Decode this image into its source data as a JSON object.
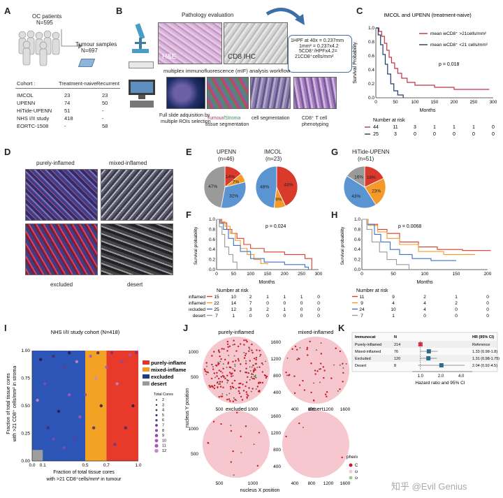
{
  "panelA": {
    "label": "A",
    "patients": "OC patients",
    "patients_n": "N=595",
    "samples": "Tumour samples",
    "samples_n": "N=697",
    "cohort_header": "Cohort :",
    "col_naive": "Treatment-naive",
    "col_recurrent": "Recurrent",
    "rows": [
      {
        "name": "IMCOL",
        "naive": "23",
        "rec": "23"
      },
      {
        "name": "UPENN",
        "naive": "74",
        "rec": "50"
      },
      {
        "name": "HiTide-UPENN",
        "naive": "51",
        "rec": "-"
      },
      {
        "name": "NHS I/II study",
        "naive": "418",
        "rec": "-"
      },
      {
        "name": "EORTC-1508",
        "naive": "-",
        "rec": "58"
      }
    ]
  },
  "panelB": {
    "label": "B",
    "title": "Pathology evaluation",
    "he": "H&E",
    "ihc": "CD8 IHC",
    "box_lines": [
      "1HPF at 40x = 0.237mm",
      "1mm² = 0.237x4.2",
      "5CD8⁺/HPFx4.2=",
      "21CD8⁺cells/mm²"
    ],
    "workflow": "multiplex immunofluorescence (mIF) analysis workflow",
    "step1": "Full slide adquisition by",
    "step1b": "multiple ROIs selection",
    "step2a": "Tumour",
    "step2slash": "/",
    "step2b": "Stroma",
    "step2c": "tissue segmentation",
    "step3": "cell segmentation",
    "step4a": "CD8⁺ T cell",
    "step4b": "phenotyping"
  },
  "panelC": {
    "label": "C",
    "title": "IMCOL and UPENN (treatment-naive)",
    "ylabel": "Survival Probability",
    "xlabel": "Months",
    "legend_high": "mean ieCD8⁺ >21cells/mm²",
    "legend_low": "mean ieCD8⁺ <21 cells/mm²",
    "p": "p = 0.018",
    "risk_title": "Number at risk",
    "xticks": [
      "0",
      "50",
      "100",
      "150",
      "200",
      "250",
      "300"
    ],
    "yticks": [
      "0.0",
      "0.2",
      "0.4",
      "0.6",
      "0.8",
      "1.0"
    ],
    "risk_high": [
      "44",
      "11",
      "3",
      "1",
      "1",
      "1",
      "0"
    ],
    "risk_low": [
      "25",
      "3",
      "0",
      "0",
      "0",
      "0",
      "0"
    ]
  },
  "panelD": {
    "label": "D",
    "t1": "purely-inflamed",
    "t2": "mixed-inflamed",
    "t3": "excluded",
    "t4": "desert"
  },
  "panelE": {
    "label": "E",
    "upenn": "UPENN",
    "upenn_n": "(n=46)",
    "imcol": "IMCOL",
    "imcol_n": "(n=23)",
    "upenn_slices": [
      "14%",
      "7%",
      "32%",
      "47%"
    ],
    "imcol_slices": [
      "43%",
      "9%",
      "48%"
    ]
  },
  "panelF": {
    "label": "F",
    "p": "p = 0.024",
    "ylabel": "Survival probability",
    "xlabel": "Months",
    "risk_title": "Number at risk",
    "xticks": [
      "0",
      "50",
      "100",
      "150",
      "200",
      "250",
      "300"
    ],
    "yticks": [
      "0.0",
      "0.2",
      "0.4",
      "0.6",
      "0.8",
      "1.0"
    ],
    "rows": [
      {
        "name": "purely-inflamed",
        "vals": [
          "15",
          "10",
          "2",
          "1",
          "1",
          "1",
          "0"
        ]
      },
      {
        "name": "mixed-inflamed",
        "vals": [
          "22",
          "14",
          "7",
          "0",
          "0",
          "0",
          "0"
        ]
      },
      {
        "name": "excluded",
        "vals": [
          "25",
          "12",
          "3",
          "2",
          "1",
          "0",
          "0"
        ]
      },
      {
        "name": "desert",
        "vals": [
          "7",
          "1",
          "0",
          "0",
          "0",
          "0",
          "0"
        ]
      }
    ]
  },
  "panelG": {
    "label": "G",
    "title": "HiTide-UPENN",
    "n": "(n=51)",
    "slices": [
      "18%",
      "23%",
      "43%",
      "16%"
    ]
  },
  "panelH": {
    "label": "H",
    "p": "p = 0.0068",
    "ylabel": "Survival probability",
    "xlabel": "Months",
    "risk_title": "Number at risk",
    "xticks": [
      "0",
      "50",
      "100",
      "150",
      "200"
    ],
    "yticks": [
      "0.0",
      "0.2",
      "0.4",
      "0.6",
      "0.8",
      "1.0"
    ],
    "rows": [
      {
        "vals": [
          "11",
          "9",
          "2",
          "1",
          "0"
        ]
      },
      {
        "vals": [
          "9",
          "4",
          "4",
          "2",
          "0"
        ]
      },
      {
        "vals": [
          "24",
          "10",
          "4",
          "0",
          "0"
        ]
      },
      {
        "vals": [
          "7",
          "1",
          "0",
          "0",
          "0"
        ]
      }
    ]
  },
  "panelI": {
    "label": "I",
    "title": "NHS I/II study cohort (N=418)",
    "ylabel1": "Fraction of total tissue cores",
    "ylabel2": "with >21 CD8⁺ cells/mm² in stroma",
    "xlabel1": "Fraction of total tissue cores",
    "xlabel2": "with >21 CD8⁺cells/mm² in tumour",
    "xticks": [
      "0.0",
      "0.1",
      "0.5",
      "0.7",
      "1.0"
    ],
    "yticks": [
      "0.00",
      "0.25",
      "0.50",
      "0.75",
      "1.00"
    ],
    "legend": [
      "purely-inflamed",
      "mixed-inflamed",
      "excluded",
      "desert"
    ],
    "total_cores": "Total Cores",
    "cores": [
      "2",
      "3",
      "4",
      "5",
      "6",
      "7",
      "8",
      "9",
      "10",
      "11",
      "12"
    ]
  },
  "panelJ": {
    "label": "J",
    "t1": "purely-inflamed",
    "t2": "mixed-inflamed",
    "t3": "excluded",
    "t4": "desert",
    "ylabel": "nucleus Y position",
    "xlabel": "nucleus X position",
    "yt1": [
      "1000",
      "500"
    ],
    "xt1": [
      "500",
      "1000"
    ],
    "yt2": [
      "1600",
      "1200",
      "800",
      "400"
    ],
    "xt2": [
      "400",
      "800",
      "1200",
      "1600"
    ],
    "yt3": [
      "1000",
      "500"
    ],
    "xt3": [
      "500",
      "1000"
    ],
    "yt4": [
      "1600",
      "1200",
      "800",
      "400"
    ],
    "xt4": [
      "400",
      "800",
      "1200",
      "1600"
    ],
    "phenotype": "phenotype",
    "ph_items": [
      "CD8⁺",
      "cell in Stroma",
      "cell in Tumour"
    ]
  },
  "panelK": {
    "label": "K",
    "h1": "Immunocat",
    "h2": "N",
    "h3": "HR (95% CI)",
    "rows": [
      {
        "name": "Purely-inflamed",
        "n": "214",
        "hr": "Reference"
      },
      {
        "name": "Mixed-inflamed",
        "n": "76",
        "hr": "1.33 (0.98-1.8)"
      },
      {
        "name": "Excluded",
        "n": "120",
        "hr": "1.31 (0.98-1.75)"
      },
      {
        "name": "Desert",
        "n": "8",
        "hr": "2.04 (0.92-4.5)"
      }
    ],
    "xticks": [
      "1.0",
      "2.0",
      "4.0"
    ],
    "xlabel": "Hazard ratio and 95% CI"
  },
  "watermark": "知乎 @Evil Genius",
  "colors": {
    "red": "#d93a2b",
    "orange": "#f39a2a",
    "blue": "#3e6fc4",
    "gray": "#9a9a9a",
    "lightblue": "#5b95d1",
    "darkblue": "#1f3a8a"
  }
}
